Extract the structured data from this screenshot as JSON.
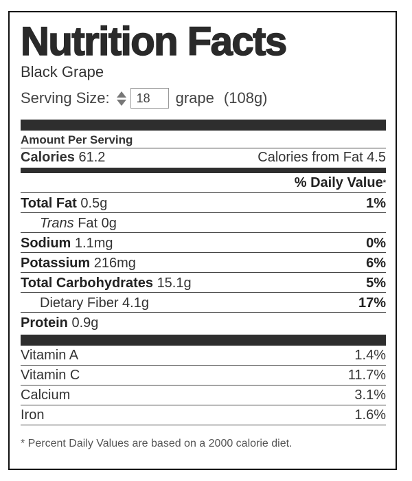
{
  "label": {
    "title": "Nutrition Facts",
    "food_name": "Black Grape",
    "serving": {
      "label": "Serving Size:",
      "quantity": "18",
      "unit": "grape",
      "weight": "(108g)"
    },
    "amount_per_serving": "Amount Per Serving",
    "calories_label": "Calories",
    "calories_value": "61.2",
    "calories_from_fat": "Calories from Fat 4.5",
    "daily_value_header": "% Daily Value",
    "daily_value_mark": "*",
    "nutrients": [
      {
        "name": "Total Fat",
        "amount": "0.5g",
        "pct": "1%"
      },
      {
        "name": "Trans",
        "suffix": "Fat 0g",
        "pct": ""
      },
      {
        "name": "Sodium",
        "amount": "1.1mg",
        "pct": "0%"
      },
      {
        "name": "Potassium",
        "amount": "216mg",
        "pct": "6%"
      },
      {
        "name": "Total Carbohydrates",
        "amount": "15.1g",
        "pct": "5%"
      },
      {
        "name": "Dietary Fiber 4.1g",
        "amount": "",
        "pct": "17%"
      },
      {
        "name": "Protein",
        "amount": "0.9g",
        "pct": ""
      }
    ],
    "vitamins": [
      {
        "name": "Vitamin A",
        "pct": "1.4%"
      },
      {
        "name": "Vitamin C",
        "pct": "11.7%"
      },
      {
        "name": "Calcium",
        "pct": "3.1%"
      },
      {
        "name": "Iron",
        "pct": "1.6%"
      }
    ],
    "footnote": "* Percent Daily Values are based on a 2000 calorie diet."
  }
}
